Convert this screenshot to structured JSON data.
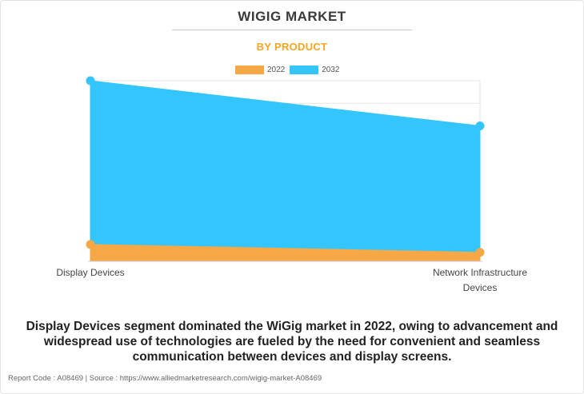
{
  "title": "WIGIG MARKET",
  "subtitle": "BY PRODUCT",
  "colors": {
    "2022": "#f5a845",
    "2032": "#35c5fd",
    "subtitle": "#f5a623"
  },
  "chart_data": {
    "type": "area",
    "title": "WIGIG MARKET",
    "subtitle": "BY PRODUCT",
    "categories": [
      "Display Devices",
      "Network Infrastructure Devices"
    ],
    "category_display": [
      [
        "Display Devices"
      ],
      [
        "Network Infrastructure",
        "Devices"
      ]
    ],
    "series": [
      {
        "name": "2022",
        "values": [
          0.75,
          0.4
        ],
        "color": "#f5a845"
      },
      {
        "name": "2032",
        "values": [
          8.0,
          6.0
        ],
        "color": "#35c5fd"
      }
    ],
    "ylim": [
      0,
      8
    ],
    "y_ticks": 8,
    "grid": true,
    "legend": "top-center"
  },
  "caption": "Display Devices segment dominated the WiGig market in 2022, owing to advancement and widespread use of technologies are fueled by the need for convenient and seamless communication between devices and display screens.",
  "footer": "Report Code : A08469  |  Source : https://www.alliedmarketresearch.com/wigig-market-A08469"
}
